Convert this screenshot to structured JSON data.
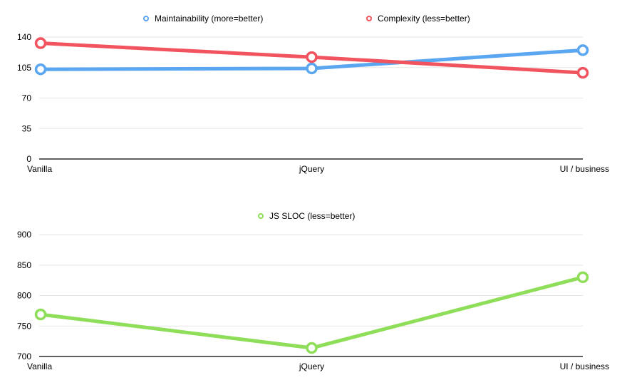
{
  "chart_data": [
    {
      "type": "line",
      "categories": [
        "Vanilla",
        "jQuery",
        "UI / business"
      ],
      "ylim": [
        0,
        140
      ],
      "yticks": [
        0,
        35,
        70,
        105,
        140
      ],
      "grid": true,
      "legend_position": "top-center",
      "series": [
        {
          "name": "Maintainability (more=better)",
          "color": "#5aa6f0",
          "values": [
            103,
            104,
            125
          ]
        },
        {
          "name": "Complexity (less=better)",
          "color": "#f2545f",
          "values": [
            133,
            117,
            99
          ]
        }
      ]
    },
    {
      "type": "line",
      "categories": [
        "Vanilla",
        "jQuery",
        "UI / business"
      ],
      "ylim": [
        700,
        900
      ],
      "yticks": [
        700,
        750,
        800,
        850,
        900
      ],
      "grid": true,
      "legend_position": "top-center",
      "series": [
        {
          "name": "JS SLOC (less=better)",
          "color": "#8fde5a",
          "values": [
            769,
            714,
            830
          ]
        }
      ]
    }
  ]
}
